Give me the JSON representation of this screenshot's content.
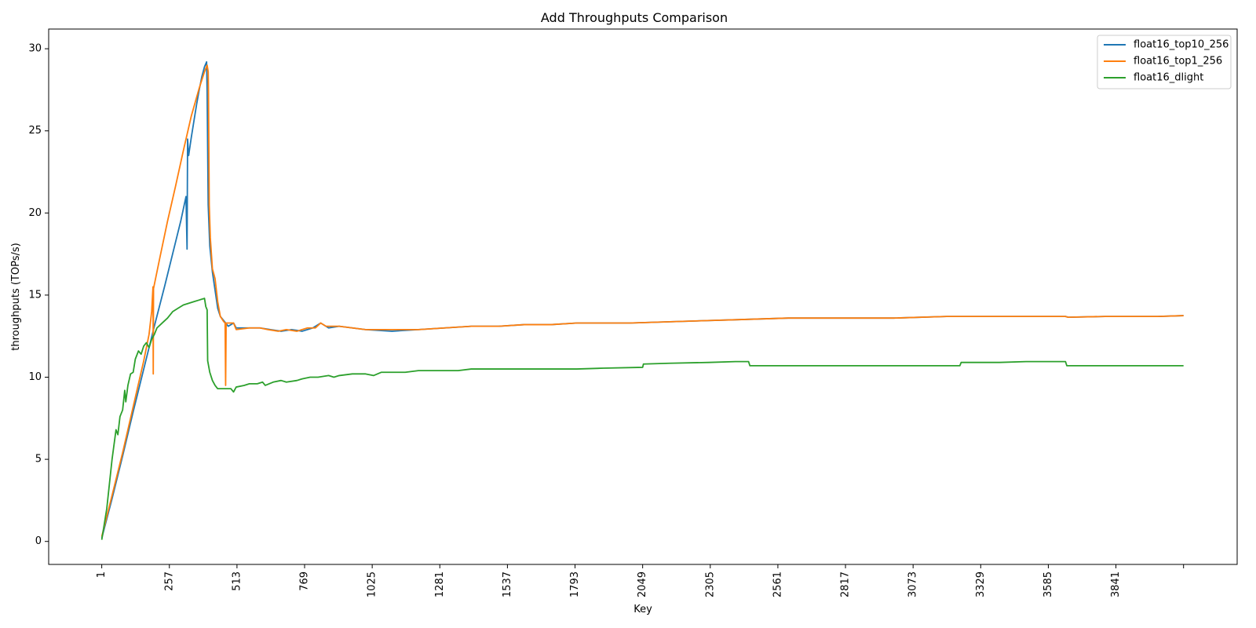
{
  "chart_data": {
    "type": "line",
    "title": "Add Throughputs Comparison",
    "xlabel": "Key",
    "ylabel": "throughputs (TOPs/s)",
    "xlim": [
      -200,
      4300
    ],
    "ylim": [
      -1.4,
      31.2
    ],
    "x_ticks": [
      1,
      257,
      513,
      769,
      1025,
      1281,
      1537,
      1793,
      2049,
      2305,
      2561,
      2817,
      3073,
      3329,
      3585,
      3841,
      4097
    ],
    "x_tick_labels": [
      "1",
      "257",
      "513",
      "769",
      "1025",
      "1281",
      "1537",
      "1793",
      "2049",
      "2305",
      "2561",
      "2817",
      "3073",
      "3329",
      "3585",
      "3841",
      ""
    ],
    "y_ticks": [
      0,
      5,
      10,
      15,
      20,
      25,
      30
    ],
    "grid": false,
    "legend_position": "top-right",
    "series": [
      {
        "name": "float16_top10_256",
        "color": "#1f77b4",
        "points": [
          [
            1,
            0.2
          ],
          [
            40,
            2.6
          ],
          [
            80,
            5.2
          ],
          [
            120,
            7.9
          ],
          [
            160,
            10.5
          ],
          [
            200,
            13.1
          ],
          [
            240,
            15.6
          ],
          [
            280,
            18.2
          ],
          [
            300,
            19.5
          ],
          [
            320,
            21.0
          ],
          [
            324,
            17.8
          ],
          [
            326,
            24.5
          ],
          [
            330,
            23.5
          ],
          [
            340,
            24.6
          ],
          [
            350,
            25.6
          ],
          [
            360,
            26.6
          ],
          [
            370,
            27.5
          ],
          [
            380,
            28.3
          ],
          [
            390,
            28.9
          ],
          [
            398,
            29.2
          ],
          [
            400,
            27.3
          ],
          [
            404,
            20.5
          ],
          [
            410,
            18.0
          ],
          [
            420,
            16.4
          ],
          [
            430,
            15.3
          ],
          [
            440,
            14.2
          ],
          [
            450,
            13.7
          ],
          [
            470,
            13.3
          ],
          [
            480,
            13.1
          ],
          [
            490,
            13.2
          ],
          [
            500,
            13.3
          ],
          [
            510,
            13.0
          ],
          [
            560,
            13.0
          ],
          [
            600,
            13.0
          ],
          [
            640,
            12.9
          ],
          [
            680,
            12.8
          ],
          [
            720,
            12.9
          ],
          [
            760,
            12.8
          ],
          [
            800,
            13.0
          ],
          [
            830,
            13.3
          ],
          [
            860,
            13.0
          ],
          [
            900,
            13.1
          ],
          [
            950,
            13.0
          ],
          [
            1000,
            12.9
          ],
          [
            1100,
            12.8
          ],
          [
            1200,
            12.9
          ],
          [
            1300,
            13.0
          ],
          [
            1400,
            13.1
          ],
          [
            1500,
            13.1
          ],
          [
            1600,
            13.2
          ],
          [
            1700,
            13.2
          ],
          [
            1800,
            13.3
          ],
          [
            2000,
            13.3
          ],
          [
            2200,
            13.4
          ],
          [
            2400,
            13.5
          ],
          [
            2600,
            13.6
          ],
          [
            2800,
            13.6
          ],
          [
            3000,
            13.6
          ],
          [
            3200,
            13.7
          ],
          [
            3400,
            13.7
          ],
          [
            3600,
            13.7
          ],
          [
            3650,
            13.7
          ],
          [
            3660,
            13.65
          ],
          [
            3800,
            13.7
          ],
          [
            4000,
            13.7
          ],
          [
            4097,
            13.75
          ]
        ]
      },
      {
        "name": "float16_top1_256",
        "color": "#ff7f0e",
        "points": [
          [
            1,
            0.3
          ],
          [
            40,
            2.8
          ],
          [
            80,
            5.4
          ],
          [
            120,
            8.2
          ],
          [
            160,
            11.0
          ],
          [
            180,
            12.6
          ],
          [
            190,
            14.0
          ],
          [
            195,
            15.5
          ],
          [
            196,
            10.2
          ],
          [
            197,
            15.4
          ],
          [
            220,
            17.2
          ],
          [
            250,
            19.5
          ],
          [
            280,
            21.6
          ],
          [
            310,
            23.8
          ],
          [
            340,
            25.9
          ],
          [
            370,
            27.6
          ],
          [
            390,
            28.6
          ],
          [
            400,
            29.0
          ],
          [
            404,
            28.6
          ],
          [
            405,
            27.5
          ],
          [
            408,
            20.5
          ],
          [
            412,
            18.5
          ],
          [
            420,
            16.6
          ],
          [
            430,
            16.0
          ],
          [
            440,
            14.6
          ],
          [
            450,
            13.7
          ],
          [
            462,
            13.4
          ],
          [
            468,
            13.3
          ],
          [
            470,
            9.5
          ],
          [
            472,
            13.3
          ],
          [
            490,
            13.3
          ],
          [
            500,
            13.3
          ],
          [
            510,
            12.9
          ],
          [
            560,
            13.0
          ],
          [
            600,
            13.0
          ],
          [
            630,
            12.9
          ],
          [
            670,
            12.8
          ],
          [
            700,
            12.9
          ],
          [
            740,
            12.8
          ],
          [
            780,
            13.0
          ],
          [
            810,
            13.0
          ],
          [
            830,
            13.3
          ],
          [
            850,
            13.1
          ],
          [
            900,
            13.1
          ],
          [
            950,
            13.0
          ],
          [
            1000,
            12.9
          ],
          [
            1100,
            12.9
          ],
          [
            1200,
            12.9
          ],
          [
            1300,
            13.0
          ],
          [
            1400,
            13.1
          ],
          [
            1500,
            13.1
          ],
          [
            1600,
            13.2
          ],
          [
            1700,
            13.2
          ],
          [
            1800,
            13.3
          ],
          [
            2000,
            13.3
          ],
          [
            2200,
            13.4
          ],
          [
            2400,
            13.5
          ],
          [
            2600,
            13.6
          ],
          [
            2800,
            13.6
          ],
          [
            3000,
            13.6
          ],
          [
            3200,
            13.7
          ],
          [
            3400,
            13.7
          ],
          [
            3600,
            13.7
          ],
          [
            3650,
            13.7
          ],
          [
            3660,
            13.65
          ],
          [
            3800,
            13.7
          ],
          [
            4000,
            13.7
          ],
          [
            4097,
            13.75
          ]
        ]
      },
      {
        "name": "float16_dlight",
        "color": "#2ca02c",
        "points": [
          [
            1,
            0.1
          ],
          [
            20,
            2.0
          ],
          [
            30,
            3.5
          ],
          [
            40,
            5.0
          ],
          [
            55,
            6.8
          ],
          [
            62,
            6.5
          ],
          [
            70,
            7.6
          ],
          [
            80,
            8.0
          ],
          [
            88,
            9.2
          ],
          [
            92,
            8.5
          ],
          [
            100,
            9.5
          ],
          [
            110,
            10.2
          ],
          [
            120,
            10.3
          ],
          [
            128,
            11.1
          ],
          [
            140,
            11.6
          ],
          [
            150,
            11.4
          ],
          [
            160,
            11.9
          ],
          [
            170,
            12.1
          ],
          [
            180,
            11.8
          ],
          [
            190,
            12.3
          ],
          [
            200,
            12.6
          ],
          [
            210,
            13.0
          ],
          [
            230,
            13.3
          ],
          [
            250,
            13.6
          ],
          [
            270,
            14.0
          ],
          [
            290,
            14.2
          ],
          [
            310,
            14.4
          ],
          [
            330,
            14.5
          ],
          [
            350,
            14.6
          ],
          [
            370,
            14.7
          ],
          [
            390,
            14.8
          ],
          [
            395,
            14.3
          ],
          [
            400,
            14.1
          ],
          [
            402,
            11.0
          ],
          [
            410,
            10.3
          ],
          [
            420,
            9.8
          ],
          [
            430,
            9.5
          ],
          [
            440,
            9.3
          ],
          [
            450,
            9.3
          ],
          [
            470,
            9.3
          ],
          [
            490,
            9.3
          ],
          [
            500,
            9.1
          ],
          [
            510,
            9.4
          ],
          [
            540,
            9.5
          ],
          [
            560,
            9.6
          ],
          [
            590,
            9.6
          ],
          [
            610,
            9.7
          ],
          [
            620,
            9.5
          ],
          [
            650,
            9.7
          ],
          [
            680,
            9.8
          ],
          [
            700,
            9.7
          ],
          [
            740,
            9.8
          ],
          [
            760,
            9.9
          ],
          [
            790,
            10.0
          ],
          [
            820,
            10.0
          ],
          [
            860,
            10.1
          ],
          [
            880,
            10.0
          ],
          [
            900,
            10.1
          ],
          [
            950,
            10.2
          ],
          [
            1000,
            10.2
          ],
          [
            1030,
            10.1
          ],
          [
            1060,
            10.3
          ],
          [
            1100,
            10.3
          ],
          [
            1150,
            10.3
          ],
          [
            1200,
            10.4
          ],
          [
            1300,
            10.4
          ],
          [
            1350,
            10.4
          ],
          [
            1400,
            10.5
          ],
          [
            1500,
            10.5
          ],
          [
            1600,
            10.5
          ],
          [
            1700,
            10.5
          ],
          [
            1800,
            10.5
          ],
          [
            1900,
            10.55
          ],
          [
            2049,
            10.6
          ],
          [
            2052,
            10.8
          ],
          [
            2150,
            10.85
          ],
          [
            2300,
            10.9
          ],
          [
            2400,
            10.95
          ],
          [
            2450,
            10.95
          ],
          [
            2455,
            10.7
          ],
          [
            2500,
            10.7
          ],
          [
            2600,
            10.7
          ],
          [
            2800,
            10.7
          ],
          [
            3000,
            10.7
          ],
          [
            3200,
            10.7
          ],
          [
            3250,
            10.7
          ],
          [
            3255,
            10.9
          ],
          [
            3400,
            10.9
          ],
          [
            3500,
            10.95
          ],
          [
            3600,
            10.95
          ],
          [
            3650,
            10.95
          ],
          [
            3655,
            10.7
          ],
          [
            3800,
            10.7
          ],
          [
            3900,
            10.7
          ],
          [
            4000,
            10.7
          ],
          [
            4097,
            10.7
          ]
        ]
      }
    ]
  }
}
